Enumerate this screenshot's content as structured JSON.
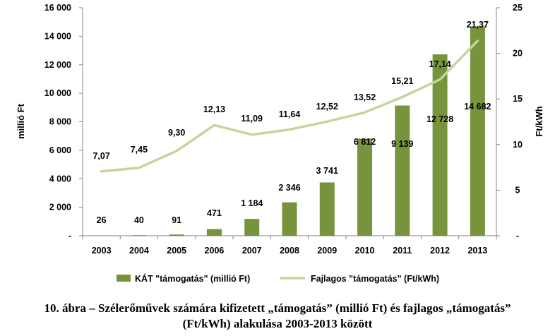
{
  "chart_data": {
    "type": "bar",
    "categories": [
      "2003",
      "2004",
      "2005",
      "2006",
      "2007",
      "2008",
      "2009",
      "2010",
      "2011",
      "2012",
      "2013"
    ],
    "series": [
      {
        "name": "KÁT \"támogatás\" (millió Ft)",
        "axis": "left",
        "type": "bar",
        "color": "#77933c",
        "values": [
          26,
          40,
          91,
          471,
          1184,
          2346,
          3741,
          6812,
          9139,
          12728,
          14682
        ],
        "labels": [
          "26",
          "40",
          "91",
          "471",
          "1 184",
          "2 346",
          "3 741",
          "6 812",
          "9 139",
          "12 728",
          "14 682"
        ]
      },
      {
        "name": "Fajlagos \"támogatás\" (Ft/kWh)",
        "axis": "right",
        "type": "line",
        "color": "#c3d69b",
        "values": [
          7.07,
          7.45,
          9.3,
          12.13,
          11.09,
          11.64,
          12.52,
          13.52,
          15.21,
          17.14,
          21.37
        ],
        "labels": [
          "7,07",
          "7,45",
          "9,30",
          "12,13",
          "11,09",
          "11,64",
          "12,52",
          "13,52",
          "15,21",
          "17,14",
          "21,37"
        ]
      }
    ],
    "ylabel": "millió Ft",
    "y2label": "Ft/kWh",
    "ylim": [
      0,
      16000
    ],
    "y2lim": [
      0,
      25
    ],
    "yticks": [
      "-",
      "2 000",
      "4 000",
      "6 000",
      "8 000",
      "10 000",
      "12 000",
      "14 000",
      "16 000"
    ],
    "y2ticks": [
      "-",
      "5",
      "10",
      "15",
      "20",
      "25"
    ],
    "legend_position": "bottom",
    "grid": false
  },
  "caption": {
    "line1": "10. ábra – Szélerőművek számára kifizetett „támogatás” (millió Ft) és fajlagos „támogatás”",
    "line2": "(Ft/kWh) alakulása 2003-2013 között"
  }
}
